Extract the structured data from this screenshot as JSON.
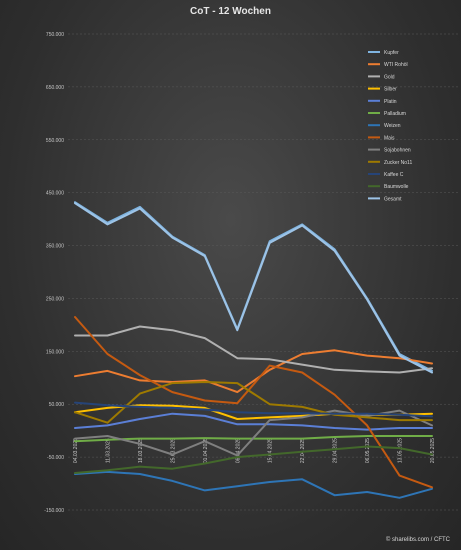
{
  "chart_data": {
    "type": "line",
    "title": "CoT - 12 Wochen",
    "xlabel": "",
    "ylabel": "",
    "ylim": [
      -150000,
      750000
    ],
    "yticks": [
      -150000,
      -50000,
      50000,
      150000,
      250000,
      350000,
      450000,
      550000,
      650000,
      750000
    ],
    "ytick_labels": [
      "-150.000",
      "-50.000",
      "50.000",
      "150.000",
      "250.000",
      "350.000",
      "450.000",
      "550.000",
      "650.000",
      "750.000"
    ],
    "grid": true,
    "legend_position": "top-right",
    "categories": [
      "04.03.2025",
      "11.03.2025",
      "18.03.2025",
      "25.03.2025",
      "01.04.2025",
      "08.04.2025",
      "15.04.2025",
      "22.04.2025",
      "29.04.2025",
      "06.05.2025",
      "13.05.2025",
      "20.05.2025"
    ],
    "series": [
      {
        "name": "Kupfer",
        "color": "#7fb4e0",
        "values": [
          432000,
          393000,
          423000,
          367000,
          332000,
          192000,
          358000,
          390000,
          343000,
          250000,
          145000,
          113000
        ]
      },
      {
        "name": "WTI Rohöl",
        "color": "#ed7d31",
        "values": [
          103000,
          113000,
          95000,
          92000,
          95000,
          73000,
          115000,
          145000,
          152000,
          142000,
          137000,
          127000
        ]
      },
      {
        "name": "Gold",
        "color": "#b0b0b0",
        "values": [
          180000,
          180000,
          197000,
          190000,
          175000,
          137000,
          135000,
          125000,
          115000,
          112000,
          110000,
          118000
        ]
      },
      {
        "name": "Silber",
        "color": "#ffc000",
        "values": [
          35000,
          43000,
          48000,
          47000,
          43000,
          22000,
          25000,
          28000,
          32000,
          30000,
          30000,
          32000
        ]
      },
      {
        "name": "Platin",
        "color": "#5b7fd6",
        "values": [
          5000,
          10000,
          22000,
          32000,
          28000,
          12000,
          12000,
          10000,
          5000,
          2000,
          5000,
          5000
        ]
      },
      {
        "name": "Palladium",
        "color": "#70ad47",
        "values": [
          -20000,
          -17000,
          -15000,
          -15000,
          -14000,
          -15000,
          -15000,
          -15000,
          -12000,
          -10000,
          -10000,
          -10000
        ]
      },
      {
        "name": "Weizen",
        "color": "#2e75b6",
        "values": [
          -82000,
          -78000,
          -82000,
          -95000,
          -113000,
          -105000,
          -97000,
          -92000,
          -122000,
          -116000,
          -127000,
          -110000
        ]
      },
      {
        "name": "Mais",
        "color": "#c55a11",
        "values": [
          215000,
          145000,
          105000,
          73000,
          57000,
          52000,
          123000,
          110000,
          68000,
          10000,
          -85000,
          -107000
        ]
      },
      {
        "name": "Sojabohnen",
        "color": "#7f7f7f",
        "values": [
          -15000,
          -10000,
          -25000,
          -45000,
          -20000,
          -47000,
          20000,
          25000,
          38000,
          28000,
          38000,
          10000
        ]
      },
      {
        "name": "Zucker No11",
        "color": "#9e7a00",
        "values": [
          35000,
          15000,
          70000,
          90000,
          92000,
          90000,
          50000,
          45000,
          30000,
          25000,
          20000,
          20000
        ]
      },
      {
        "name": "Kaffee C",
        "color": "#264478",
        "values": [
          53000,
          48000,
          45000,
          43000,
          40000,
          35000,
          33000,
          33000,
          32000,
          32000,
          30000,
          27000
        ]
      },
      {
        "name": "Baumwolle",
        "color": "#43682b",
        "values": [
          -80000,
          -75000,
          -68000,
          -72000,
          -62000,
          -50000,
          -45000,
          -40000,
          -35000,
          -30000,
          -33000,
          -45000
        ]
      },
      {
        "name": "Gesamt",
        "color": "#9dc3e6",
        "values": [
          430000,
          390000,
          420000,
          365000,
          330000,
          190000,
          355000,
          388000,
          340000,
          248000,
          142000,
          110000
        ]
      }
    ]
  },
  "footer": {
    "credit": "© sharelibs.com / CFTC"
  }
}
